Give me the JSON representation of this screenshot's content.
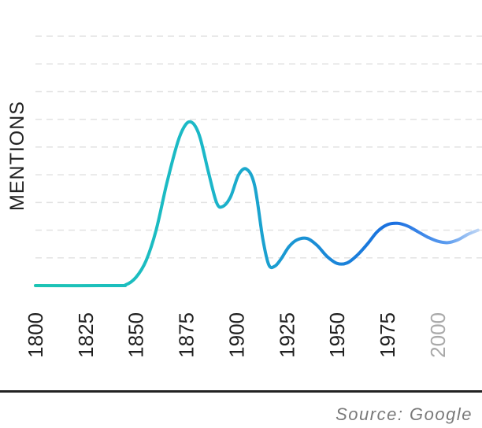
{
  "chart_data": {
    "type": "line",
    "ylabel": "MENTIONS",
    "source": "Source: Google",
    "x_ticks": [
      {
        "label": "1800",
        "value": 1800
      },
      {
        "label": "1825",
        "value": 1825
      },
      {
        "label": "1850",
        "value": 1850
      },
      {
        "label": "1875",
        "value": 1875
      },
      {
        "label": "1900",
        "value": 1900
      },
      {
        "label": "1925",
        "value": 1925
      },
      {
        "label": "1950",
        "value": 1950
      },
      {
        "label": "1975",
        "value": 1975
      },
      {
        "label": "2000",
        "value": 2000,
        "faded": true
      }
    ],
    "xlim": [
      1800,
      2022
    ],
    "ylim": [
      0,
      9
    ],
    "grid": true,
    "series": [
      {
        "x": [
          1800,
          1840,
          1845,
          1850,
          1855,
          1860,
          1865,
          1870,
          1873,
          1876,
          1879,
          1882,
          1886,
          1890,
          1893,
          1897,
          1901,
          1905,
          1909,
          1913,
          1916,
          1919,
          1922,
          1926,
          1930,
          1935,
          1940,
          1945,
          1950,
          1955,
          1960,
          1965,
          1970,
          1975,
          1980,
          1985,
          1990,
          1995,
          2000,
          2005,
          2010,
          2015,
          2020
        ],
        "y": [
          0,
          0,
          0.03,
          0.3,
          0.9,
          2.0,
          3.6,
          5.0,
          5.6,
          5.9,
          5.8,
          5.3,
          4.1,
          3.0,
          2.85,
          3.2,
          4.0,
          4.2,
          3.6,
          1.7,
          0.75,
          0.7,
          0.95,
          1.4,
          1.65,
          1.7,
          1.45,
          1.05,
          0.8,
          0.82,
          1.1,
          1.5,
          1.95,
          2.2,
          2.25,
          2.15,
          1.95,
          1.75,
          1.6,
          1.55,
          1.65,
          1.85,
          2.0
        ]
      }
    ],
    "gradient": [
      "#1cc4b4",
      "#1a6fe0",
      "#c9dcf6"
    ]
  }
}
